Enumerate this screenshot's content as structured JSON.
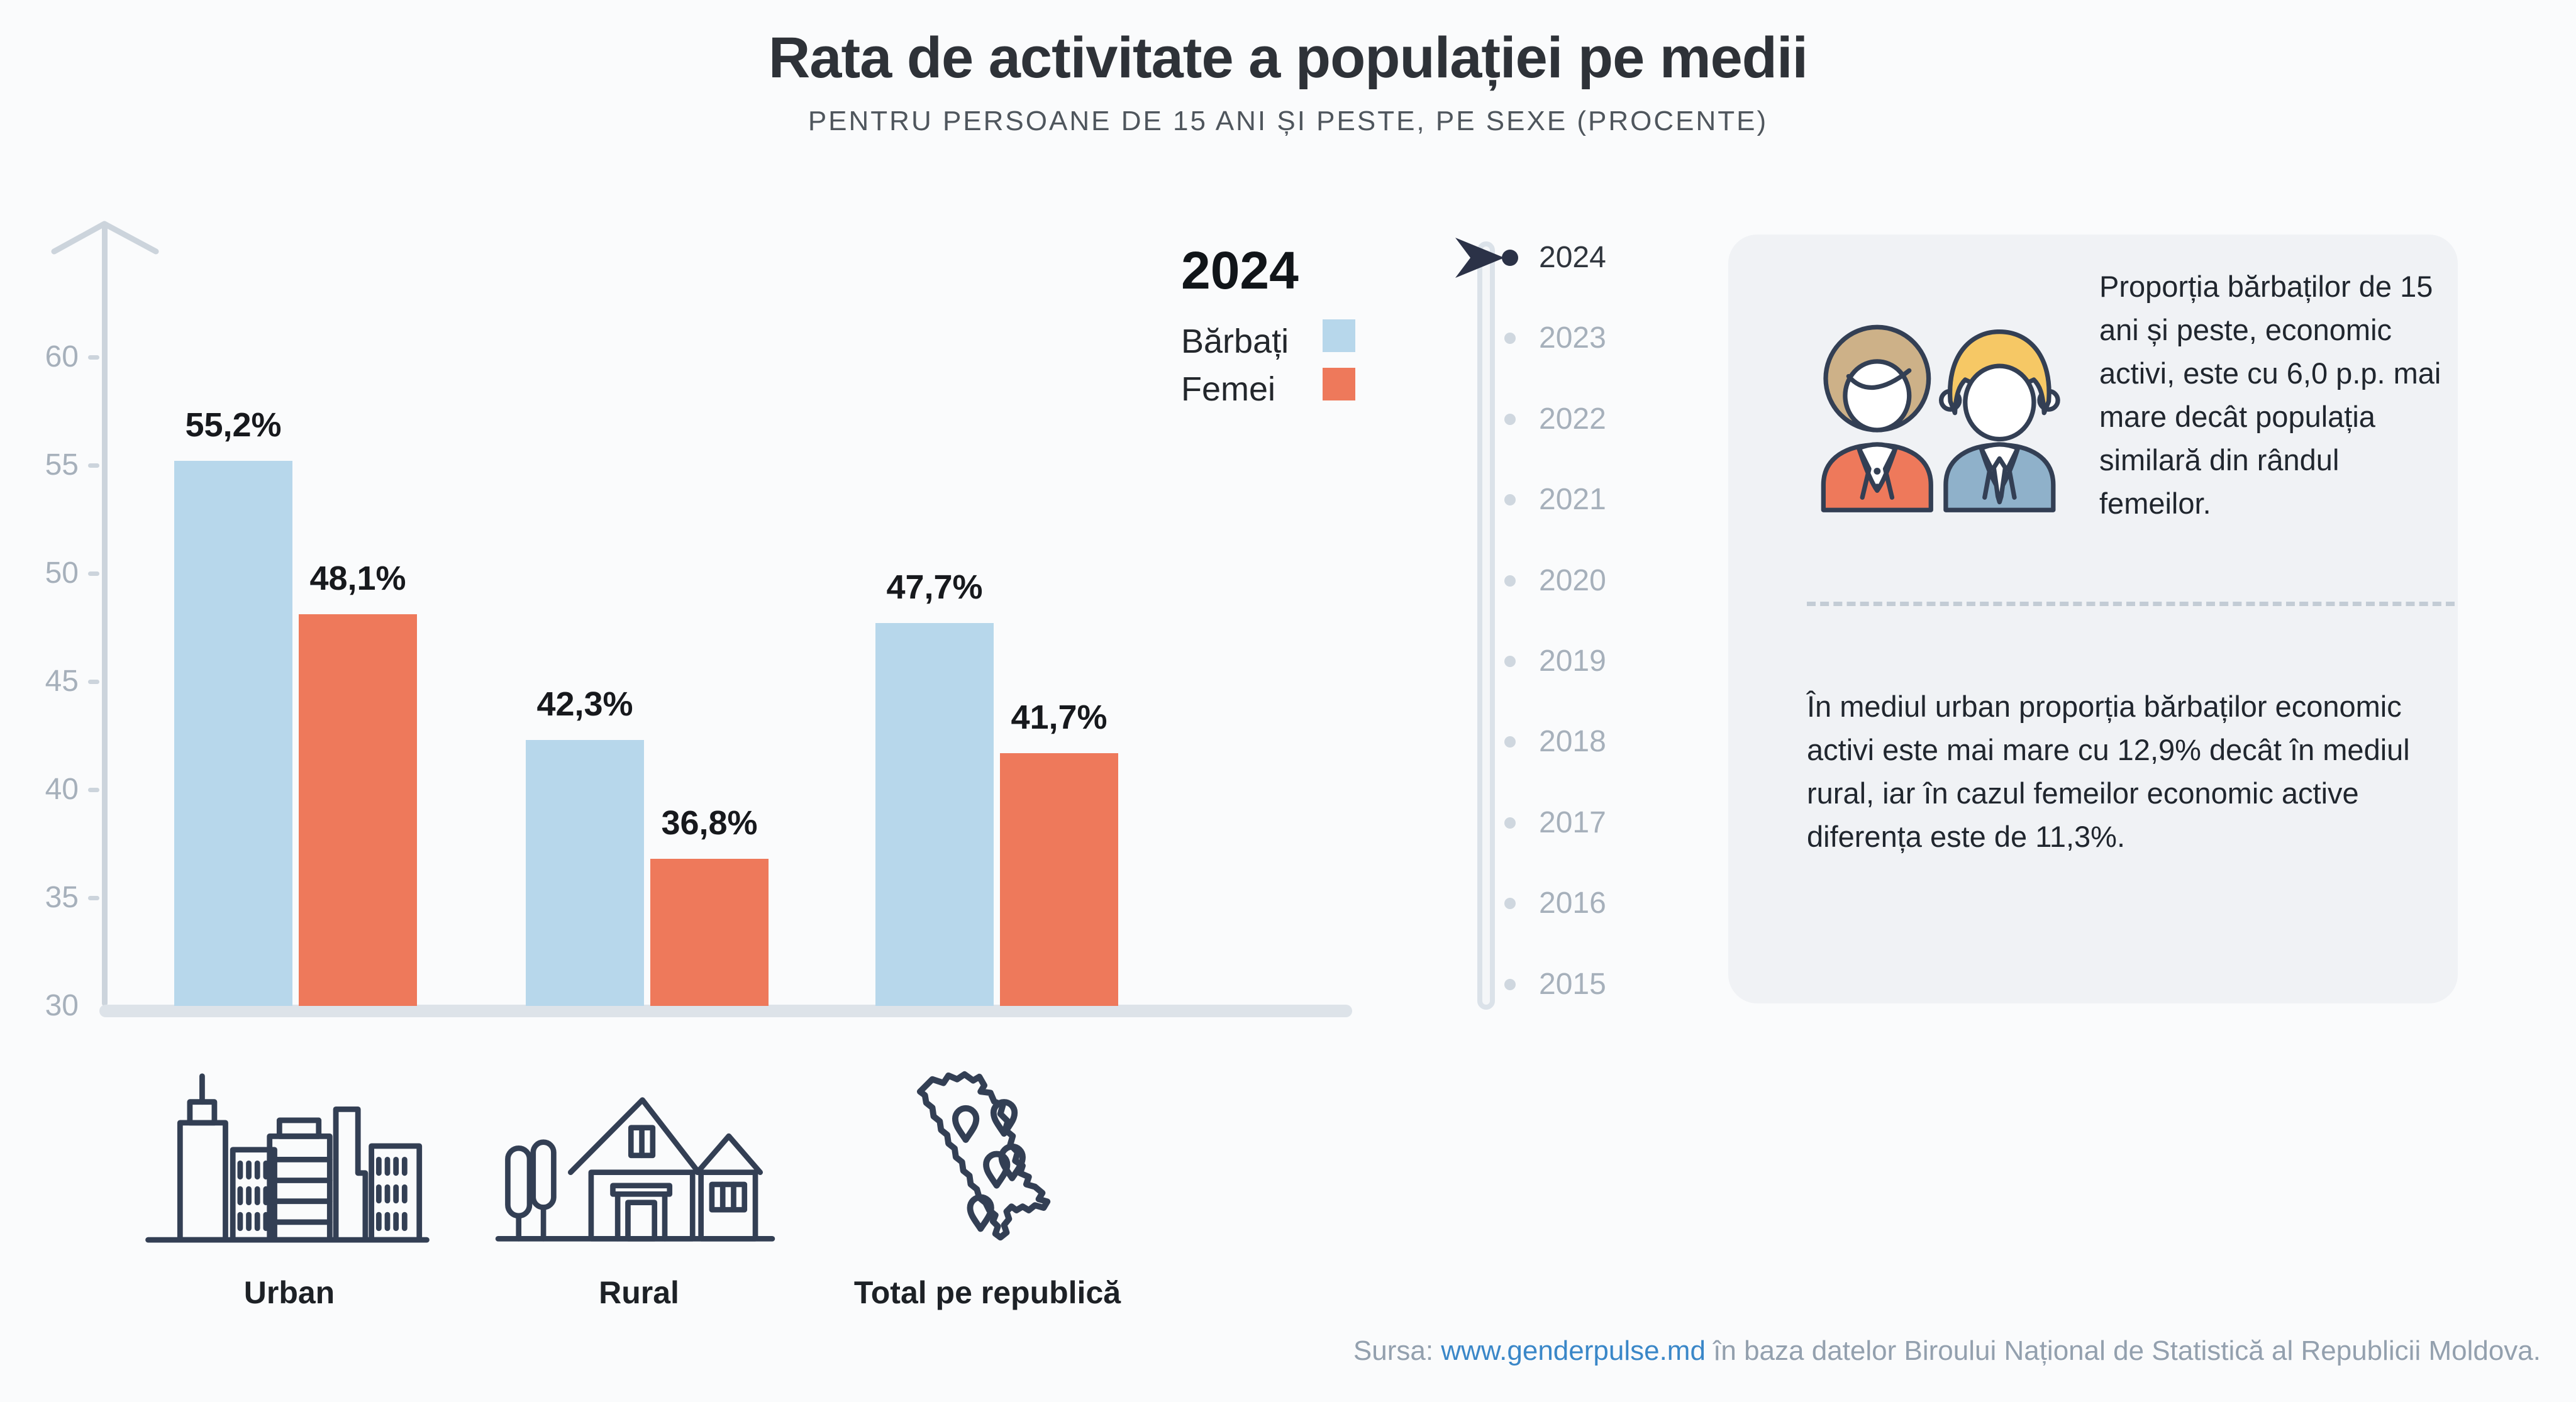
{
  "chart_data": {
    "type": "bar",
    "title": "Rata de activitate a populației pe medii",
    "subtitle": "PENTRU PERSOANE DE 15 ANI ȘI PESTE, PE SEXE (PROCENTE)",
    "categories": [
      "Urban",
      "Rural",
      "Total pe republică"
    ],
    "series": [
      {
        "name": "Bărbați",
        "color": "#b7d7eb",
        "values": [
          55.2,
          42.3,
          47.7
        ]
      },
      {
        "name": "Femei",
        "color": "#ee795b",
        "values": [
          48.1,
          36.8,
          41.7
        ]
      }
    ],
    "value_labels": [
      [
        "55,2%",
        "48,1%"
      ],
      [
        "42,3%",
        "36,8%"
      ],
      [
        "47,7%",
        "41,7%"
      ]
    ],
    "legend_year": "2024",
    "legend_position": "top-right",
    "xlabel": "",
    "ylabel": "",
    "ylim": [
      30,
      60
    ],
    "yticks": [
      30,
      35,
      40,
      45,
      50,
      55,
      60
    ],
    "grid": false
  },
  "timeline": {
    "years": [
      "2024",
      "2023",
      "2022",
      "2021",
      "2020",
      "2019",
      "2018",
      "2017",
      "2016",
      "2015"
    ],
    "active_year": "2024"
  },
  "insight_panel": {
    "text1": "Proporția bărbaților de 15 ani și peste, economic activi, este cu 6,0 p.p. mai mare decât populația similară din rândul femeilor.",
    "text2": "În mediul urban proporția bărbaților economic activi este mai mare cu 12,9% decât în mediul rural, iar în cazul femeilor economic active diferența este de 11,3%."
  },
  "footer": {
    "prefix": "Sursa: ",
    "link": "www.genderpulse.md",
    "suffix": " în baza datelor Biroului Național de Statistică al Republicii Moldova."
  },
  "icons": {
    "y_axis_arrow": "up-arrow-icon",
    "timeline_pointer": "right-arrow-icon",
    "category_icons": [
      "city-buildings-icon",
      "rural-house-icon",
      "moldova-map-pins-icon"
    ],
    "panel_icon": "man-woman-avatars-icon"
  },
  "colors": {
    "background": "#fafbfc",
    "panel_background": "#f0f2f5",
    "bar_men": "#b7d7eb",
    "bar_women": "#ee795b",
    "axis_gray": "#ccd4dc",
    "baseline_gray": "#dde3e9",
    "active_dark": "#2b3247",
    "inactive_gray": "#a6b0bb",
    "link_blue": "#3a87c8",
    "outline_navy": "#333f54"
  }
}
